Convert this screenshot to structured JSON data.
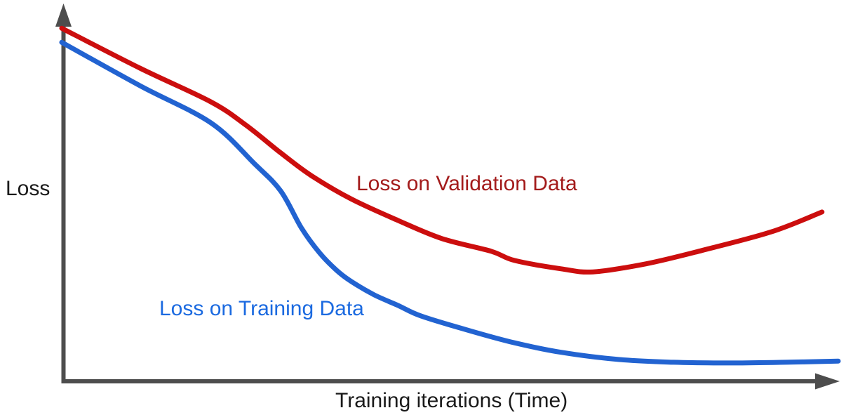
{
  "figure": {
    "background": "#ffffff",
    "axis_color": "#4d4d4d",
    "text_color": "#1a1a1a"
  },
  "chart_data": {
    "type": "line",
    "title": "",
    "xlabel": "Training iterations (Time)",
    "ylabel": "Loss",
    "grid": false,
    "legend_position": "inline-annotations",
    "axes": {
      "x_range": [
        0,
        100
      ],
      "y_range": [
        0,
        100
      ],
      "tick_labels": "none",
      "arrows": true
    },
    "series": [
      {
        "name": "Loss on Validation Data",
        "color": "#cc0e0e",
        "label_color": "#a31b1b",
        "label_anchor_units": {
          "x": 37.9,
          "y": 54.9
        },
        "points": [
          [
            0,
            92.6
          ],
          [
            10.1,
            82.1
          ],
          [
            19.2,
            73.3
          ],
          [
            23.7,
            67.2
          ],
          [
            28.2,
            59.9
          ],
          [
            32.1,
            54.0
          ],
          [
            37.2,
            47.9
          ],
          [
            43.3,
            42.2
          ],
          [
            49.0,
            37.4
          ],
          [
            55.3,
            34.1
          ],
          [
            58.3,
            31.7
          ],
          [
            64.3,
            29.5
          ],
          [
            68.4,
            28.7
          ],
          [
            75.2,
            30.8
          ],
          [
            82.4,
            34.3
          ],
          [
            91.4,
            39.2
          ],
          [
            97.9,
            44.4
          ]
        ]
      },
      {
        "name": "Loss on Training Data",
        "color": "#2263d1",
        "label_color": "#1b6ae0",
        "label_anchor_units": {
          "x": 12.6,
          "y": 22.1
        },
        "points": [
          [
            0,
            88.9
          ],
          [
            10.1,
            77.5
          ],
          [
            19.2,
            67.8
          ],
          [
            24.8,
            57.1
          ],
          [
            28.2,
            49.9
          ],
          [
            30.9,
            40.1
          ],
          [
            33.2,
            33.7
          ],
          [
            35.4,
            29.1
          ],
          [
            37.2,
            26.3
          ],
          [
            40.2,
            22.7
          ],
          [
            43.3,
            19.9
          ],
          [
            46.3,
            17.1
          ],
          [
            52.3,
            13.4
          ],
          [
            58.3,
            10.1
          ],
          [
            64.3,
            7.6
          ],
          [
            71.8,
            5.7
          ],
          [
            78.8,
            5.0
          ],
          [
            86.0,
            4.8
          ],
          [
            93.2,
            5.0
          ],
          [
            100,
            5.3
          ]
        ]
      }
    ]
  }
}
